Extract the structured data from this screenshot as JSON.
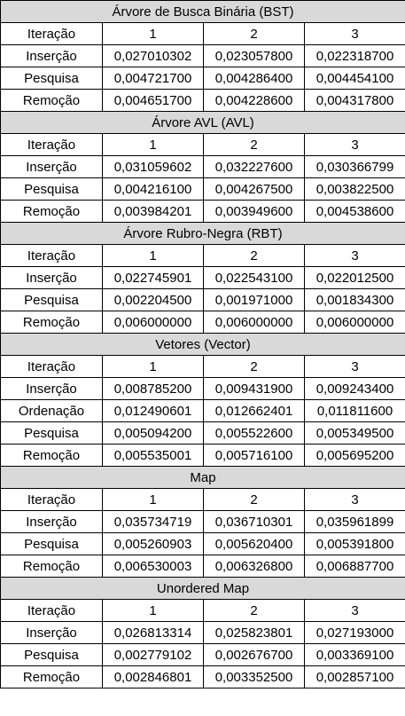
{
  "sections": [
    {
      "title": "Árvore de Busca Binária (BST)",
      "rows": [
        [
          "Iteração",
          "1",
          "2",
          "3"
        ],
        [
          "Inserção",
          "0,027010302",
          "0,023057800",
          "0,022318700"
        ],
        [
          "Pesquisa",
          "0,004721700",
          "0,004286400",
          "0,004454100"
        ],
        [
          "Remoção",
          "0,004651700",
          "0,004228600",
          "0,004317800"
        ]
      ]
    },
    {
      "title": "Árvore AVL (AVL)",
      "rows": [
        [
          "Iteração",
          "1",
          "2",
          "3"
        ],
        [
          "Inserção",
          "0,031059602",
          "0,032227600",
          "0,030366799"
        ],
        [
          "Pesquisa",
          "0,004216100",
          "0,004267500",
          "0,003822500"
        ],
        [
          "Remoção",
          "0,003984201",
          "0,003949600",
          "0,004538600"
        ]
      ]
    },
    {
      "title": "Árvore Rubro-Negra (RBT)",
      "rows": [
        [
          "Iteração",
          "1",
          "2",
          "3"
        ],
        [
          "Inserção",
          "0,022745901",
          "0,022543100",
          "0,022012500"
        ],
        [
          "Pesquisa",
          "0,002204500",
          "0,001971000",
          "0,001834300"
        ],
        [
          "Remoção",
          "0,006000000",
          "0,006000000",
          "0,006000000"
        ]
      ]
    },
    {
      "title": "Vetores (Vector)",
      "rows": [
        [
          "Iteração",
          "1",
          "2",
          "3"
        ],
        [
          "Inserção",
          "0,008785200",
          "0,009431900",
          "0,009243400"
        ],
        [
          "Ordenação",
          "0,012490601",
          "0,012662401",
          "0,011811600"
        ],
        [
          "Pesquisa",
          "0,005094200",
          "0,005522600",
          "0,005349500"
        ],
        [
          "Remoção",
          "0,005535001",
          "0,005716100",
          "0,005695200"
        ]
      ]
    },
    {
      "title": "Map",
      "rows": [
        [
          "Iteração",
          "1",
          "2",
          "3"
        ],
        [
          "Inserção",
          "0,035734719",
          "0,036710301",
          "0,035961899"
        ],
        [
          "Pesquisa",
          "0,005260903",
          "0,005620400",
          "0,005391800"
        ],
        [
          "Remoção",
          "0,006530003",
          "0,006326800",
          "0,006887700"
        ]
      ]
    },
    {
      "title": "Unordered Map",
      "rows": [
        [
          "Iteração",
          "1",
          "2",
          "3"
        ],
        [
          "Inserção",
          "0,026813314",
          "0,025823801",
          "0,027193000"
        ],
        [
          "Pesquisa",
          "0,002779102",
          "0,002676700",
          "0,003369100"
        ],
        [
          "Remoção",
          "0,002846801",
          "0,003352500",
          "0,002857100"
        ]
      ]
    }
  ],
  "colors": {
    "header_bg": "#d9d9d9",
    "cell_bg": "#ffffff",
    "border": "#000000"
  }
}
